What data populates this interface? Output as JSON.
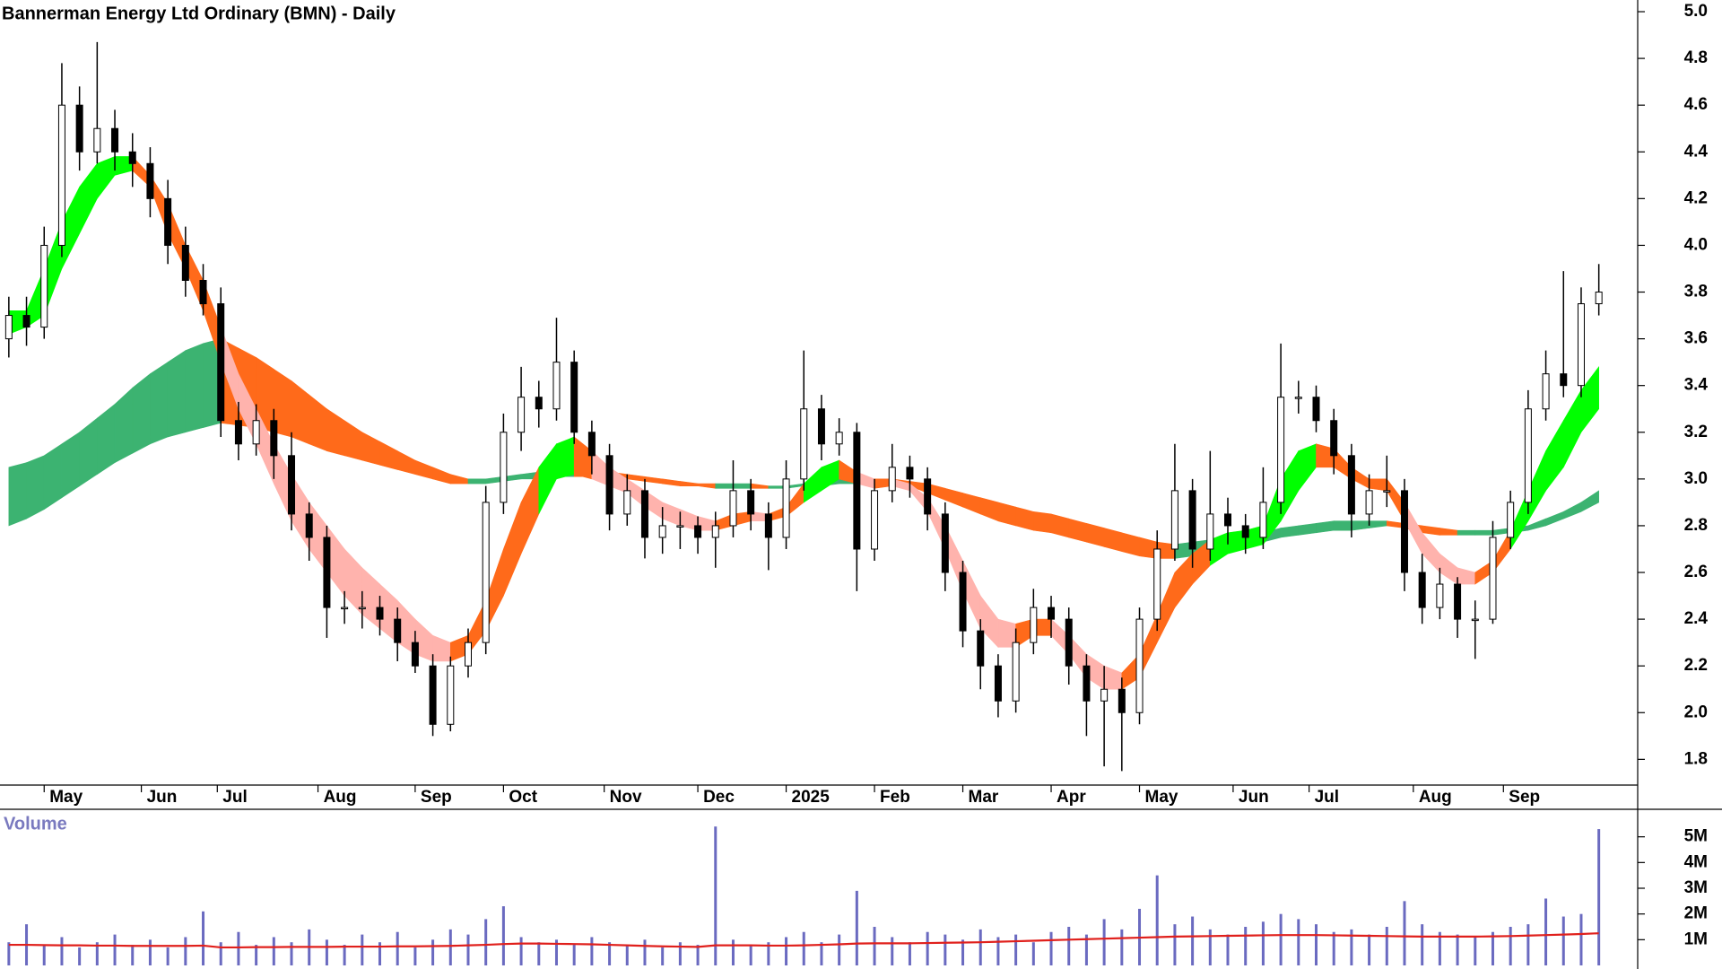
{
  "chart_data": {
    "type": "candlestick",
    "title": "Bannerman Energy Ltd Ordinary (BMN) - Daily",
    "ylim": [
      1.69,
      5.05
    ],
    "yticks": [
      1.8,
      {
        "value": 2,
        "label": "2.0"
      },
      2.2,
      2.4,
      2.6,
      2.8,
      {
        "value": 3,
        "label": "3.0"
      },
      3.2,
      3.4,
      3.6,
      3.8,
      {
        "value": 4,
        "label": "4.0"
      },
      4.2,
      4.4,
      4.6,
      4.8,
      {
        "value": 5,
        "label": "5.0"
      }
    ],
    "xlim": [
      -0.5,
      92.2
    ],
    "xticks": [
      {
        "value": 2,
        "label": "May"
      },
      {
        "value": 7.5,
        "label": "Jun"
      },
      {
        "value": 11.8,
        "label": "Jul"
      },
      {
        "value": 17.5,
        "label": "Aug"
      },
      {
        "value": 23,
        "label": "Sep"
      },
      {
        "value": 28,
        "label": "Oct"
      },
      {
        "value": 33.7,
        "label": "Nov"
      },
      {
        "value": 39,
        "label": "Dec"
      },
      {
        "value": 44,
        "label": "2025"
      },
      {
        "value": 49,
        "label": "Feb"
      },
      {
        "value": 54,
        "label": "Mar"
      },
      {
        "value": 59,
        "label": "Apr"
      },
      {
        "value": 64,
        "label": "May"
      },
      {
        "value": 69.3,
        "label": "Jun"
      },
      {
        "value": 73.6,
        "label": "Jul"
      },
      {
        "value": 79.5,
        "label": "Aug"
      },
      {
        "value": 84.6,
        "label": "Sep"
      }
    ],
    "up_color": "#ffffff",
    "down_color": "#000000",
    "open": [
      3.6,
      3.7,
      3.65,
      4.0,
      4.6,
      4.4,
      4.5,
      4.4,
      4.35,
      4.2,
      4.0,
      3.85,
      3.75,
      3.25,
      3.15,
      3.25,
      3.1,
      2.85,
      2.75,
      2.45,
      2.45,
      2.45,
      2.4,
      2.3,
      2.2,
      1.95,
      2.2,
      2.3,
      2.9,
      3.2,
      3.35,
      3.3,
      3.5,
      3.2,
      3.1,
      2.85,
      2.95,
      2.75,
      2.8,
      2.8,
      2.75,
      2.8,
      2.95,
      2.85,
      2.75,
      3.0,
      3.3,
      3.15,
      3.2,
      2.7,
      2.95,
      3.05,
      3.0,
      2.85,
      2.6,
      2.35,
      2.2,
      2.05,
      2.3,
      2.45,
      2.4,
      2.2,
      2.05,
      2.1,
      2.0,
      2.4,
      2.7,
      2.95,
      2.7,
      2.85,
      2.8,
      2.75,
      2.9,
      3.35,
      3.35,
      3.25,
      3.1,
      2.85,
      2.95,
      2.95,
      2.6,
      2.45,
      2.55,
      2.4,
      2.4,
      2.75,
      2.9,
      3.3,
      3.45,
      3.4,
      3.75
    ],
    "high": [
      3.78,
      3.78,
      4.08,
      4.78,
      4.68,
      4.87,
      4.58,
      4.48,
      4.42,
      4.28,
      4.08,
      3.92,
      3.82,
      3.33,
      3.32,
      3.3,
      3.2,
      2.9,
      2.8,
      2.52,
      2.52,
      2.5,
      2.45,
      2.35,
      2.25,
      2.24,
      2.36,
      2.97,
      3.28,
      3.48,
      3.42,
      3.69,
      3.55,
      3.25,
      3.15,
      3.02,
      3.0,
      2.88,
      2.86,
      2.84,
      2.86,
      3.08,
      3.0,
      2.9,
      3.08,
      3.55,
      3.36,
      3.26,
      3.24,
      3.0,
      3.15,
      3.1,
      3.05,
      2.9,
      2.65,
      2.4,
      2.25,
      2.36,
      2.53,
      2.5,
      2.45,
      2.25,
      2.2,
      2.15,
      2.45,
      2.78,
      3.15,
      3.0,
      3.12,
      2.92,
      2.85,
      3.05,
      3.58,
      3.42,
      3.4,
      3.3,
      3.15,
      3.02,
      3.1,
      3.0,
      2.68,
      2.62,
      2.58,
      2.48,
      2.82,
      2.95,
      3.38,
      3.55,
      3.89,
      3.82,
      3.92
    ],
    "low": [
      3.52,
      3.57,
      3.6,
      3.95,
      4.32,
      4.35,
      4.32,
      4.25,
      4.12,
      3.92,
      3.78,
      3.7,
      3.18,
      3.08,
      3.1,
      3.0,
      2.78,
      2.65,
      2.32,
      2.38,
      2.36,
      2.33,
      2.22,
      2.17,
      1.9,
      1.92,
      2.15,
      2.25,
      2.85,
      3.12,
      3.22,
      3.25,
      3.15,
      3.02,
      2.78,
      2.8,
      2.66,
      2.68,
      2.7,
      2.68,
      2.62,
      2.75,
      2.78,
      2.61,
      2.7,
      2.95,
      3.08,
      3.1,
      2.52,
      2.65,
      2.9,
      2.92,
      2.78,
      2.52,
      2.28,
      2.1,
      1.98,
      2.0,
      2.25,
      2.32,
      2.12,
      1.9,
      1.77,
      1.75,
      1.95,
      2.35,
      2.65,
      2.62,
      2.65,
      2.72,
      2.68,
      2.7,
      2.85,
      3.28,
      3.2,
      3.02,
      2.75,
      2.8,
      2.88,
      2.52,
      2.38,
      2.4,
      2.32,
      2.23,
      2.38,
      2.7,
      2.85,
      3.25,
      3.35,
      3.35,
      3.7
    ],
    "close": [
      3.7,
      3.65,
      4.0,
      4.6,
      4.4,
      4.5,
      4.4,
      4.35,
      4.2,
      4.0,
      3.85,
      3.75,
      3.25,
      3.15,
      3.25,
      3.1,
      2.85,
      2.75,
      2.45,
      2.45,
      2.45,
      2.4,
      2.3,
      2.2,
      1.95,
      2.2,
      2.3,
      2.9,
      3.2,
      3.35,
      3.3,
      3.5,
      3.2,
      3.1,
      2.85,
      2.95,
      2.75,
      2.8,
      2.8,
      2.75,
      2.8,
      2.95,
      2.85,
      2.75,
      3.0,
      3.3,
      3.15,
      3.2,
      2.7,
      2.95,
      3.05,
      3.0,
      2.85,
      2.6,
      2.35,
      2.2,
      2.05,
      2.3,
      2.45,
      2.4,
      2.2,
      2.05,
      2.1,
      2.0,
      2.4,
      2.7,
      2.95,
      2.7,
      2.85,
      2.8,
      2.75,
      2.9,
      3.35,
      3.35,
      3.25,
      3.1,
      2.85,
      2.95,
      2.95,
      2.6,
      2.45,
      2.55,
      2.4,
      2.4,
      2.75,
      2.9,
      3.3,
      3.45,
      3.4,
      3.75,
      3.8
    ],
    "ribbons": [
      {
        "upper": [
          3.05,
          3.07,
          3.1,
          3.15,
          3.2,
          3.26,
          3.32,
          3.39,
          3.45,
          3.5,
          3.55,
          3.58,
          3.6,
          3.56,
          3.52,
          3.47,
          3.42,
          3.36,
          3.3,
          3.25,
          3.2,
          3.16,
          3.12,
          3.08,
          3.05,
          3.02,
          3.0,
          3.0,
          3.01,
          3.02,
          3.03,
          3.04,
          3.05,
          3.04,
          3.03,
          3.02,
          3.01,
          3.0,
          2.99,
          2.98,
          2.98,
          2.98,
          2.98,
          2.97,
          2.97,
          2.98,
          2.99,
          3.0,
          3.0,
          3.0,
          3.0,
          2.99,
          2.98,
          2.96,
          2.94,
          2.92,
          2.9,
          2.88,
          2.86,
          2.85,
          2.83,
          2.81,
          2.79,
          2.77,
          2.75,
          2.73,
          2.72,
          2.73,
          2.74,
          2.75,
          2.76,
          2.77,
          2.79,
          2.8,
          2.81,
          2.82,
          2.82,
          2.82,
          2.82,
          2.81,
          2.8,
          2.79,
          2.78,
          2.78,
          2.78,
          2.79,
          2.8,
          2.83,
          2.86,
          2.9,
          2.95
        ],
        "lower": [
          2.8,
          2.83,
          2.87,
          2.92,
          2.97,
          3.02,
          3.07,
          3.11,
          3.15,
          3.18,
          3.2,
          3.22,
          3.24,
          3.23,
          3.22,
          3.2,
          3.18,
          3.15,
          3.12,
          3.1,
          3.08,
          3.06,
          3.04,
          3.02,
          3.0,
          2.98,
          2.98,
          2.98,
          2.99,
          3.0,
          3.0,
          3.01,
          3.01,
          3.01,
          3.0,
          3.0,
          2.99,
          2.98,
          2.97,
          2.97,
          2.96,
          2.96,
          2.96,
          2.96,
          2.96,
          2.97,
          2.97,
          2.98,
          2.98,
          2.98,
          2.98,
          2.97,
          2.94,
          2.91,
          2.88,
          2.85,
          2.82,
          2.8,
          2.78,
          2.77,
          2.75,
          2.73,
          2.71,
          2.69,
          2.67,
          2.66,
          2.66,
          2.67,
          2.69,
          2.7,
          2.72,
          2.73,
          2.75,
          2.76,
          2.77,
          2.78,
          2.78,
          2.79,
          2.8,
          2.79,
          2.77,
          2.76,
          2.76,
          2.76,
          2.76,
          2.77,
          2.78,
          2.8,
          2.83,
          2.86,
          2.9
        ],
        "colors": {
          "up": "#3cb371",
          "down": "#ff6a1a"
        }
      },
      {
        "upper": [
          3.72,
          3.72,
          3.9,
          4.1,
          4.25,
          4.35,
          4.38,
          4.38,
          4.3,
          4.18,
          4.0,
          3.85,
          3.65,
          3.45,
          3.3,
          3.15,
          3.02,
          2.9,
          2.8,
          2.7,
          2.62,
          2.55,
          2.48,
          2.4,
          2.33,
          2.3,
          2.33,
          2.48,
          2.7,
          2.9,
          3.05,
          3.15,
          3.18,
          3.12,
          3.05,
          3.0,
          2.95,
          2.9,
          2.87,
          2.84,
          2.82,
          2.85,
          2.86,
          2.85,
          2.88,
          2.98,
          3.05,
          3.08,
          3.03,
          3.0,
          3.0,
          2.98,
          2.92,
          2.8,
          2.65,
          2.5,
          2.4,
          2.38,
          2.4,
          2.4,
          2.33,
          2.25,
          2.2,
          2.17,
          2.25,
          2.42,
          2.6,
          2.68,
          2.74,
          2.77,
          2.78,
          2.8,
          3.0,
          3.12,
          3.15,
          3.13,
          3.05,
          3.0,
          3.0,
          2.9,
          2.77,
          2.68,
          2.62,
          2.6,
          2.65,
          2.78,
          2.95,
          3.12,
          3.25,
          3.38,
          3.48
        ],
        "lower": [
          3.62,
          3.65,
          3.7,
          3.9,
          4.05,
          4.2,
          4.3,
          4.32,
          4.25,
          4.05,
          3.9,
          3.72,
          3.5,
          3.3,
          3.15,
          2.98,
          2.82,
          2.7,
          2.6,
          2.5,
          2.42,
          2.36,
          2.3,
          2.25,
          2.22,
          2.22,
          2.25,
          2.35,
          2.5,
          2.68,
          2.85,
          3.0,
          3.02,
          3.0,
          2.97,
          2.94,
          2.88,
          2.83,
          2.8,
          2.78,
          2.78,
          2.8,
          2.82,
          2.82,
          2.84,
          2.9,
          2.95,
          3.0,
          2.98,
          2.96,
          2.97,
          2.95,
          2.86,
          2.7,
          2.52,
          2.36,
          2.28,
          2.28,
          2.33,
          2.33,
          2.25,
          2.15,
          2.1,
          2.1,
          2.15,
          2.3,
          2.45,
          2.55,
          2.63,
          2.68,
          2.7,
          2.72,
          2.82,
          2.95,
          3.05,
          3.05,
          3.0,
          2.96,
          2.95,
          2.82,
          2.68,
          2.6,
          2.55,
          2.55,
          2.6,
          2.7,
          2.82,
          2.95,
          3.05,
          3.2,
          3.3
        ],
        "colors": {
          "up": "#00ff00",
          "down": "#ffb3ad",
          "mixed": "#ff6a1a"
        }
      }
    ],
    "volume": {
      "label": "Volume",
      "color": "#6a6ac0",
      "average_color": "#e0201c",
      "ylim": [
        0,
        6000000
      ],
      "yticks": [
        {
          "value": 1000000,
          "label": "1M"
        },
        {
          "value": 2000000,
          "label": "2M"
        },
        {
          "value": 3000000,
          "label": "3M"
        },
        {
          "value": 4000000,
          "label": "4M"
        },
        {
          "value": 5000000,
          "label": "5M"
        }
      ],
      "values": [
        900000,
        1600000,
        800000,
        1100000,
        700000,
        900000,
        1200000,
        800000,
        1000000,
        700000,
        1100000,
        2100000,
        900000,
        1300000,
        800000,
        1100000,
        900000,
        1400000,
        1000000,
        800000,
        1200000,
        900000,
        1300000,
        700000,
        1000000,
        1400000,
        1200000,
        1800000,
        2300000,
        1100000,
        900000,
        1000000,
        800000,
        1100000,
        900000,
        800000,
        1000000,
        700000,
        900000,
        800000,
        5400000,
        1000000,
        800000,
        900000,
        1100000,
        1300000,
        900000,
        1200000,
        2900000,
        1500000,
        1100000,
        900000,
        1300000,
        1200000,
        1000000,
        1400000,
        1100000,
        1200000,
        900000,
        1300000,
        1500000,
        1200000,
        1800000,
        1400000,
        2200000,
        3500000,
        1600000,
        1900000,
        1400000,
        1200000,
        1500000,
        1700000,
        2000000,
        1800000,
        1600000,
        1300000,
        1400000,
        1200000,
        1500000,
        2500000,
        1600000,
        1300000,
        1200000,
        1100000,
        1300000,
        1500000,
        1600000,
        2600000,
        1900000,
        2000000,
        5300000
      ],
      "average": [
        800000,
        800000,
        790000,
        780000,
        780000,
        770000,
        770000,
        760000,
        760000,
        760000,
        760000,
        770000,
        700000,
        700000,
        710000,
        710000,
        720000,
        720000,
        720000,
        730000,
        730000,
        730000,
        740000,
        740000,
        750000,
        760000,
        780000,
        800000,
        830000,
        850000,
        850000,
        840000,
        830000,
        820000,
        800000,
        780000,
        760000,
        740000,
        730000,
        720000,
        780000,
        780000,
        780000,
        770000,
        770000,
        780000,
        800000,
        820000,
        850000,
        860000,
        860000,
        860000,
        870000,
        880000,
        890000,
        900000,
        920000,
        940000,
        960000,
        980000,
        1000000,
        1020000,
        1040000,
        1060000,
        1080000,
        1100000,
        1120000,
        1130000,
        1140000,
        1150000,
        1160000,
        1170000,
        1180000,
        1180000,
        1180000,
        1170000,
        1160000,
        1150000,
        1140000,
        1130000,
        1120000,
        1120000,
        1120000,
        1120000,
        1130000,
        1140000,
        1160000,
        1180000,
        1200000,
        1220000,
        1250000
      ]
    }
  }
}
